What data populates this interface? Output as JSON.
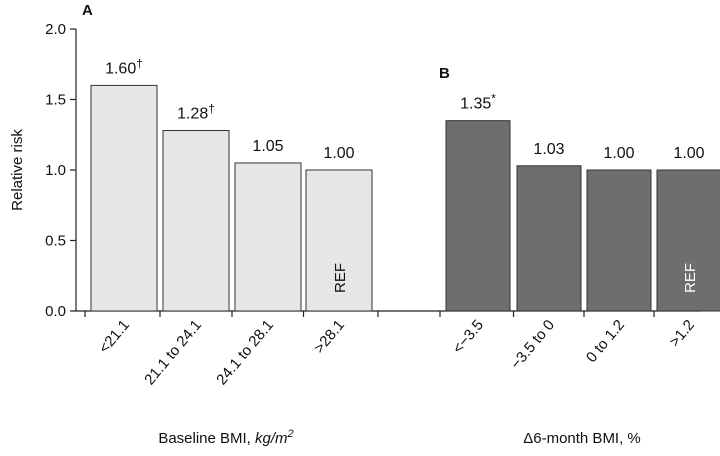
{
  "chart_data": {
    "type": "bar",
    "ylabel": "Relative risk",
    "ylim": [
      0,
      2.0
    ],
    "yticks": [
      "0.0",
      "0.5",
      "1.0",
      "1.5",
      "2.0"
    ],
    "grid": false,
    "panels": [
      {
        "label": "A",
        "xlabel_text": "Baseline BMI, ",
        "xlabel_unit_base": "kg/m",
        "xlabel_unit_exp": "2",
        "bar_color": "#e6e6e6",
        "categories": [
          "<21.1",
          "21.1 to 24.1",
          "24.1 to 28.1",
          ">28.1"
        ],
        "values": [
          1.6,
          1.28,
          1.05,
          1.0
        ],
        "value_labels": [
          "1.60",
          "1.28",
          "1.05",
          "1.00"
        ],
        "marks": [
          "†",
          "†",
          "",
          ""
        ],
        "ref_index": 3,
        "ref_label": "REF",
        "ref_text_color": "#111111"
      },
      {
        "label": "B",
        "xlabel_text": "Δ6-month BMI, %",
        "xlabel_unit_base": "",
        "xlabel_unit_exp": "",
        "bar_color": "#6e6e6e",
        "categories": [
          "<−3.5",
          "−3.5 to 0",
          "0 to 1.2",
          ">1.2"
        ],
        "values": [
          1.35,
          1.03,
          1.0,
          1.0
        ],
        "value_labels": [
          "1.35",
          "1.03",
          "1.00",
          "1.00"
        ],
        "marks": [
          "*",
          "",
          "",
          ""
        ],
        "ref_index": 3,
        "ref_label": "REF",
        "ref_text_color": "#ffffff"
      }
    ]
  }
}
